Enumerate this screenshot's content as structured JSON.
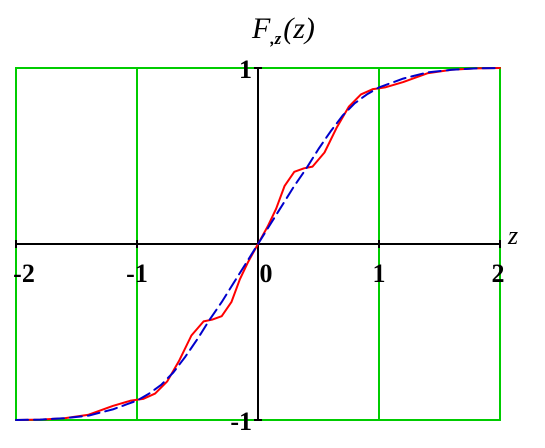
{
  "chart_data": {
    "type": "line",
    "title": "F,z(z)",
    "title_parts": {
      "main": "F",
      "sub": ",z",
      "arg": "(z)"
    },
    "xlabel": "z",
    "ylabel": "",
    "xlim": [
      -2,
      2
    ],
    "ylim": [
      -1,
      1
    ],
    "x_ticks": [
      -2,
      -1,
      0,
      1,
      2
    ],
    "x_tick_labels": [
      "-2",
      "-1",
      "0",
      "1",
      "2"
    ],
    "y_tick_labels": [
      {
        "value": 1,
        "label": "1"
      },
      {
        "value": -1,
        "label": "-1"
      }
    ],
    "grid": true,
    "grid_color": "#00cc00",
    "series": [
      {
        "style": "solid",
        "color": "#ff0000",
        "x": [
          -2.0,
          -1.8,
          -1.6,
          -1.4,
          -1.2,
          -1.05,
          -0.95,
          -0.85,
          -0.75,
          -0.65,
          -0.55,
          -0.45,
          -0.38,
          -0.3,
          -0.22,
          -0.15,
          -0.08,
          0.0,
          0.08,
          0.15,
          0.22,
          0.3,
          0.38,
          0.45,
          0.55,
          0.65,
          0.75,
          0.85,
          0.95,
          1.05,
          1.2,
          1.4,
          1.6,
          1.8,
          2.0
        ],
        "y": [
          -1.0,
          -0.998,
          -0.99,
          -0.97,
          -0.92,
          -0.89,
          -0.88,
          -0.85,
          -0.78,
          -0.66,
          -0.52,
          -0.44,
          -0.43,
          -0.41,
          -0.33,
          -0.2,
          -0.1,
          0.0,
          0.1,
          0.2,
          0.33,
          0.41,
          0.43,
          0.44,
          0.52,
          0.66,
          0.78,
          0.85,
          0.88,
          0.89,
          0.92,
          0.97,
          0.99,
          0.998,
          1.0
        ]
      },
      {
        "style": "dashed",
        "color": "#0000cc",
        "x": [
          -2.0,
          -1.8,
          -1.6,
          -1.4,
          -1.2,
          -1.0,
          -0.9,
          -0.8,
          -0.7,
          -0.6,
          -0.5,
          -0.4,
          -0.3,
          -0.2,
          -0.1,
          0.0,
          0.1,
          0.2,
          0.3,
          0.4,
          0.5,
          0.6,
          0.7,
          0.8,
          0.9,
          1.0,
          1.2,
          1.4,
          1.6,
          1.8,
          2.0
        ],
        "y": [
          -1.0,
          -0.998,
          -0.99,
          -0.975,
          -0.94,
          -0.89,
          -0.85,
          -0.8,
          -0.73,
          -0.64,
          -0.54,
          -0.43,
          -0.33,
          -0.22,
          -0.11,
          0.0,
          0.11,
          0.22,
          0.33,
          0.43,
          0.54,
          0.64,
          0.73,
          0.8,
          0.85,
          0.89,
          0.94,
          0.975,
          0.99,
          0.998,
          1.0
        ]
      }
    ]
  }
}
